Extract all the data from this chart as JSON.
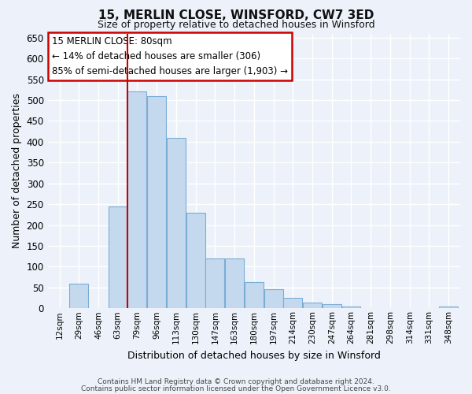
{
  "title": "15, MERLIN CLOSE, WINSFORD, CW7 3ED",
  "subtitle": "Size of property relative to detached houses in Winsford",
  "xlabel": "Distribution of detached houses by size in Winsford",
  "ylabel": "Number of detached properties",
  "bin_labels": [
    "12sqm",
    "29sqm",
    "46sqm",
    "63sqm",
    "79sqm",
    "96sqm",
    "113sqm",
    "130sqm",
    "147sqm",
    "163sqm",
    "180sqm",
    "197sqm",
    "214sqm",
    "230sqm",
    "247sqm",
    "264sqm",
    "281sqm",
    "298sqm",
    "314sqm",
    "331sqm",
    "348sqm"
  ],
  "bar_heights": [
    0,
    60,
    0,
    245,
    520,
    510,
    410,
    230,
    120,
    120,
    63,
    45,
    25,
    13,
    10,
    5,
    0,
    0,
    0,
    0,
    5
  ],
  "bar_color": "#c5d9ee",
  "bar_edge_color": "#7aadd4",
  "marker_bin_index": 4,
  "marker_color": "#cc0000",
  "ylim": [
    0,
    660
  ],
  "yticks": [
    0,
    50,
    100,
    150,
    200,
    250,
    300,
    350,
    400,
    450,
    500,
    550,
    600,
    650
  ],
  "annotation_title": "15 MERLIN CLOSE: 80sqm",
  "annotation_line1": "← 14% of detached houses are smaller (306)",
  "annotation_line2": "85% of semi-detached houses are larger (1,903) →",
  "annotation_box_color": "#ffffff",
  "annotation_box_edge": "#cc0000",
  "footer1": "Contains HM Land Registry data © Crown copyright and database right 2024.",
  "footer2": "Contains public sector information licensed under the Open Government Licence v3.0.",
  "background_color": "#edf2fa",
  "grid_color": "#ffffff",
  "title_fontsize": 11,
  "subtitle_fontsize": 9,
  "ylabel_fontsize": 9,
  "xlabel_fontsize": 9
}
